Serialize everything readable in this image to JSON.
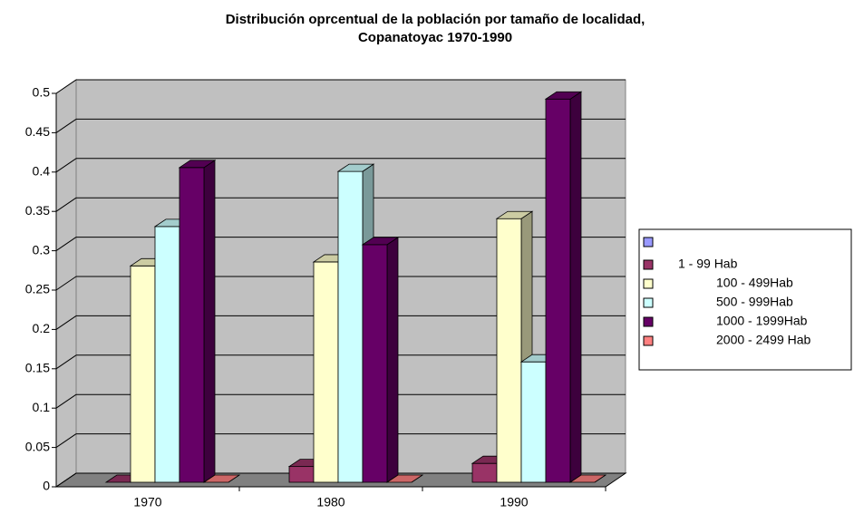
{
  "chart_data": {
    "type": "bar3d",
    "title": [
      "Distribución oprcentual de la población por tamaño de localidad,",
      "Copanatoyac 1970-1990"
    ],
    "categories": [
      "1970",
      "1980",
      "1990"
    ],
    "series": [
      {
        "name": null,
        "color": "#9999ff",
        "values": [
          null,
          null,
          null
        ]
      },
      {
        "name": "1 - 99 Hab",
        "color": "#993366",
        "values": [
          0,
          0.02,
          0.024
        ]
      },
      {
        "name": "100 - 499Hab",
        "color": "#ffffcc",
        "values": [
          0.275,
          0.28,
          0.335
        ]
      },
      {
        "name": "500 - 999Hab",
        "color": "#ccffff",
        "values": [
          0.325,
          0.395,
          0.153
        ]
      },
      {
        "name": "1000 - 1999Hab",
        "color": "#660066",
        "values": [
          0.4,
          0.302,
          0.487
        ]
      },
      {
        "name": "2000 - 2499 Hab",
        "color": "#ff8080",
        "values": [
          0,
          0,
          0
        ]
      }
    ],
    "ylim": [
      0,
      0.5
    ],
    "yticks": [
      0,
      0.05,
      0.1,
      0.15,
      0.2,
      0.25,
      0.3,
      0.35,
      0.4,
      0.45,
      0.5
    ],
    "grid": true,
    "legend": "right"
  }
}
